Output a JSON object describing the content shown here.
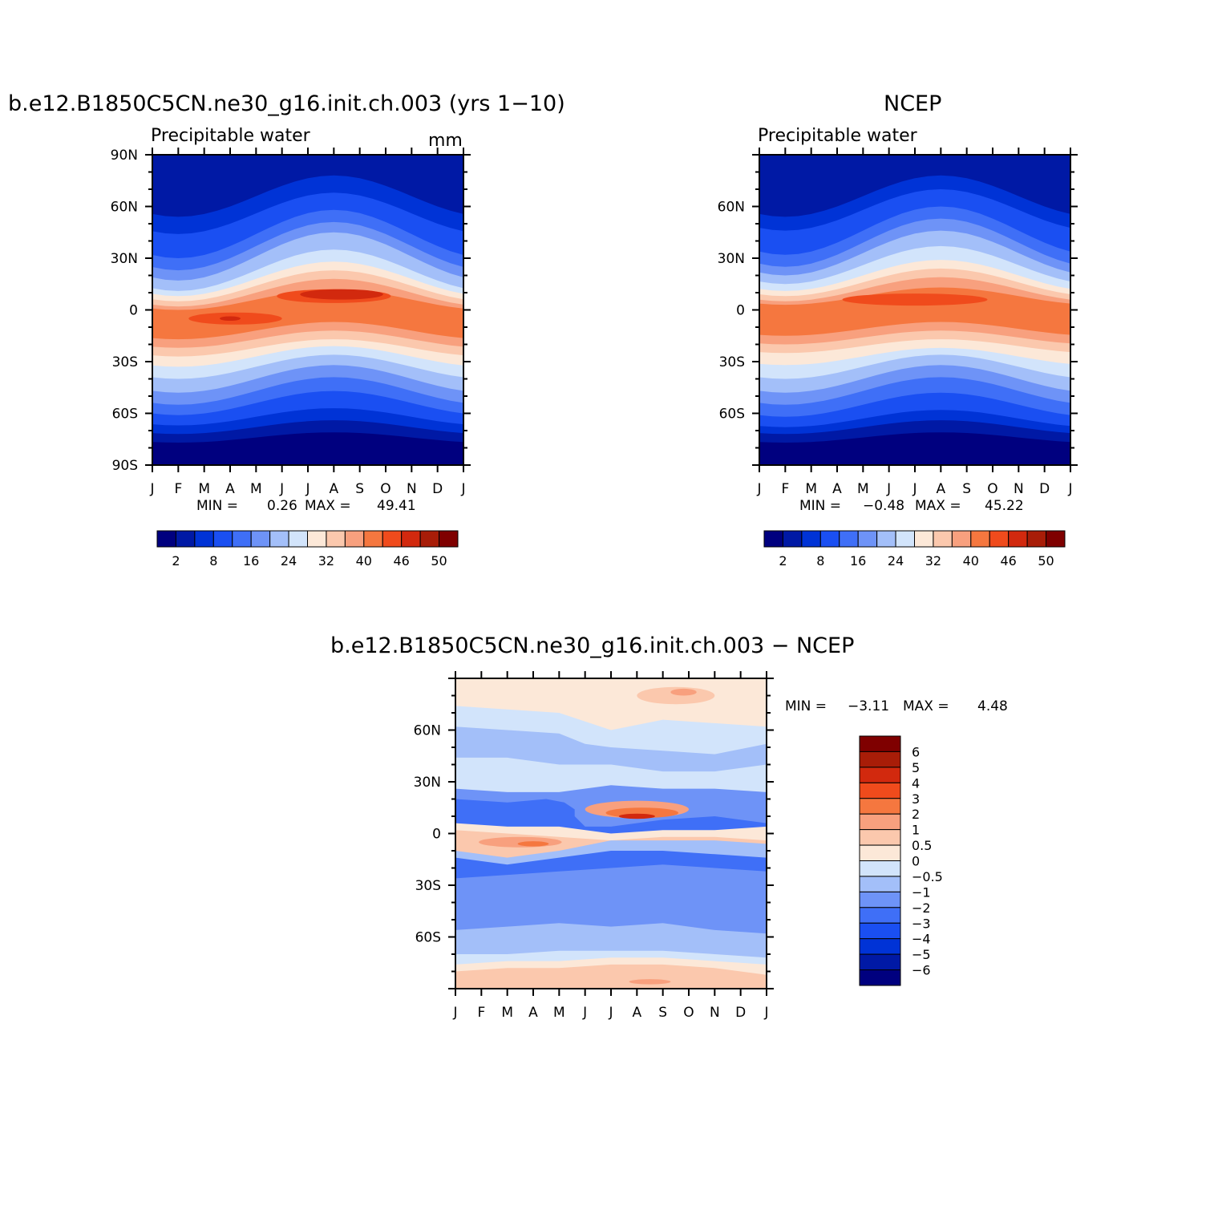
{
  "chart_data": [
    {
      "type": "heatmap",
      "title": "b.e12.B1850C5CN.ne30_g16.init.ch.003 (yrs  1−10)",
      "subtitle": "Precipitable  water",
      "units": "mm",
      "x_tick_labels": [
        "J",
        "F",
        "M",
        "A",
        "M",
        "J",
        "J",
        "A",
        "S",
        "O",
        "N",
        "D",
        "J"
      ],
      "y_tick_labels": [
        "90N",
        "60N",
        "30N",
        "0",
        "30S",
        "60S",
        "90S"
      ],
      "min_label": "MIN =",
      "min_value": "0.26",
      "max_label": "MAX =",
      "max_value": "49.41",
      "colorbar_labels": [
        "2",
        "8",
        "16",
        "24",
        "32",
        "40",
        "46",
        "50"
      ],
      "value_range": [
        0.26,
        49.41
      ]
    },
    {
      "type": "heatmap",
      "title": "NCEP",
      "subtitle": "Precipitable  water",
      "x_tick_labels": [
        "J",
        "F",
        "M",
        "A",
        "M",
        "J",
        "J",
        "A",
        "S",
        "O",
        "N",
        "D",
        "J"
      ],
      "y_tick_labels": [
        "60N",
        "30N",
        "0",
        "30S",
        "60S"
      ],
      "min_label": "MIN =",
      "min_value": "−0.48",
      "max_label": "MAX =",
      "max_value": "45.22",
      "colorbar_labels": [
        "2",
        "8",
        "16",
        "24",
        "32",
        "40",
        "46",
        "50"
      ],
      "value_range": [
        -0.48,
        45.22
      ]
    },
    {
      "type": "heatmap",
      "title": "b.e12.B1850C5CN.ne30_g16.init.ch.003  −  NCEP",
      "x_tick_labels": [
        "J",
        "F",
        "M",
        "A",
        "M",
        "J",
        "J",
        "A",
        "S",
        "O",
        "N",
        "D",
        "J"
      ],
      "y_tick_labels": [
        "60N",
        "30N",
        "0",
        "30S",
        "60S"
      ],
      "min_label": "MIN =",
      "min_value": "−3.11",
      "max_label": "MAX =",
      "max_value": "4.48",
      "colorbar_labels": [
        "6",
        "5",
        "4",
        "3",
        "2",
        "1",
        "0.5",
        "0",
        "−0.5",
        "−1",
        "−2",
        "−3",
        "−4",
        "−5",
        "−6"
      ],
      "value_range": [
        -3.11,
        4.48
      ]
    }
  ],
  "colors": {
    "scale": [
      "#00007f",
      "#0019a5",
      "#0033d6",
      "#1a4ff2",
      "#3f6ff7",
      "#6e93f7",
      "#a3bff9",
      "#d2e4fb",
      "#fce8d8",
      "#fbc8ad",
      "#f8a07e",
      "#f5773f",
      "#f04b1c",
      "#d2290e",
      "#a81d08",
      "#7f0000"
    ]
  }
}
